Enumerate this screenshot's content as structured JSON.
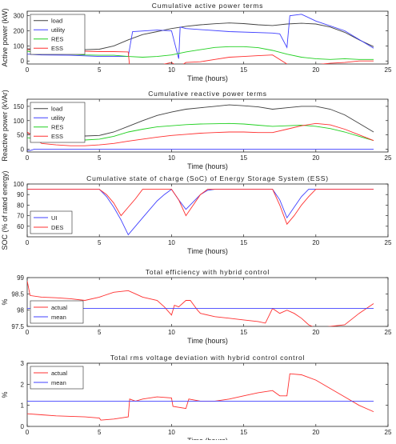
{
  "chart_data": [
    {
      "type": "line",
      "title": "Cumulative active power terms",
      "xlabel": "Time (hours)",
      "ylabel": "Active power (kW)",
      "xlim": [
        0,
        25
      ],
      "ylim": [
        -20,
        330
      ],
      "xticks": [
        0,
        5,
        10,
        15,
        20,
        25
      ],
      "yticks": [
        0,
        100,
        200,
        300
      ],
      "grid": false,
      "legend": "top-left",
      "series": [
        {
          "name": "load",
          "color": "#404040",
          "x": [
            0,
            1,
            2,
            3,
            4,
            5,
            6,
            7,
            8,
            9,
            10,
            11,
            12,
            13,
            14,
            15,
            16,
            17,
            18,
            19,
            20,
            21,
            22,
            23,
            24
          ],
          "y": [
            80,
            78,
            76,
            75,
            75,
            78,
            100,
            140,
            175,
            195,
            215,
            230,
            240,
            247,
            252,
            248,
            240,
            235,
            245,
            250,
            245,
            225,
            190,
            140,
            95
          ]
        },
        {
          "name": "utility",
          "color": "#4040ff",
          "x": [
            0,
            1,
            3,
            5,
            7,
            7.3,
            9,
            10,
            10.5,
            10.6,
            11,
            14,
            17,
            17.5,
            18,
            18.2,
            19,
            20,
            22,
            24
          ],
          "y": [
            45,
            40,
            38,
            30,
            30,
            195,
            205,
            200,
            15,
            225,
            215,
            195,
            185,
            180,
            90,
            300,
            310,
            265,
            200,
            85
          ]
        },
        {
          "name": "RES",
          "color": "#20d020",
          "x": [
            0,
            1,
            2,
            3,
            4,
            5,
            6,
            7,
            8,
            9,
            10,
            11,
            12,
            13,
            14,
            15,
            16,
            17,
            18,
            19,
            20,
            21,
            22,
            23,
            24
          ],
          "y": [
            65,
            52,
            48,
            45,
            40,
            38,
            38,
            30,
            25,
            30,
            40,
            60,
            75,
            90,
            95,
            95,
            88,
            70,
            45,
            25,
            15,
            10,
            15,
            10,
            10
          ]
        },
        {
          "name": "ESS",
          "color": "#ff3030",
          "x": [
            0,
            1,
            2,
            3,
            4,
            5,
            6,
            7,
            7.1,
            8,
            9,
            9.5,
            10,
            10.5,
            11,
            12,
            13,
            14,
            15,
            16,
            17,
            18,
            18.3,
            19,
            20,
            21,
            22,
            23,
            24
          ],
          "y": [
            75,
            72,
            70,
            68,
            65,
            62,
            62,
            60,
            -40,
            -40,
            -35,
            -20,
            -10,
            -40,
            -10,
            -5,
            10,
            25,
            30,
            35,
            40,
            -20,
            -40,
            -35,
            -25,
            -15,
            -10,
            0,
            0
          ]
        }
      ]
    },
    {
      "type": "line",
      "title": "Cumulative reactive power terms",
      "xlabel": "Time (hours)",
      "ylabel": "Reactive power (kVAr)",
      "xlim": [
        0,
        25
      ],
      "ylim": [
        -10,
        175
      ],
      "xticks": [
        0,
        5,
        10,
        15,
        20,
        25
      ],
      "yticks": [
        0,
        50,
        100,
        150
      ],
      "grid": false,
      "legend": "top-left",
      "series": [
        {
          "name": "load",
          "color": "#404040",
          "x": [
            0,
            1,
            2,
            3,
            4,
            5,
            6,
            7,
            8,
            9,
            10,
            11,
            12,
            13,
            14,
            15,
            16,
            17,
            18,
            19,
            20,
            21,
            22,
            23,
            24
          ],
          "y": [
            55,
            52,
            50,
            48,
            46,
            48,
            60,
            80,
            100,
            118,
            130,
            140,
            145,
            150,
            155,
            152,
            148,
            140,
            145,
            150,
            150,
            140,
            120,
            90,
            60
          ]
        },
        {
          "name": "utility",
          "color": "#4040ff",
          "x": [
            0,
            0.2,
            0.5,
            24
          ],
          "y": [
            -5,
            -5,
            0,
            0
          ]
        },
        {
          "name": "RES",
          "color": "#20d020",
          "x": [
            0,
            1,
            2,
            3,
            4,
            5,
            6,
            7,
            8,
            9,
            10,
            11,
            12,
            13,
            14,
            15,
            16,
            17,
            18,
            19,
            20,
            21,
            22,
            23,
            24
          ],
          "y": [
            40,
            36,
            34,
            33,
            32,
            35,
            45,
            60,
            70,
            78,
            82,
            86,
            88,
            89,
            90,
            88,
            84,
            80,
            82,
            84,
            80,
            72,
            60,
            45,
            30
          ]
        },
        {
          "name": "ESS",
          "color": "#ff3030",
          "x": [
            0,
            1,
            2,
            3,
            4,
            5,
            6,
            7,
            8,
            9,
            10,
            11,
            12,
            13,
            14,
            15,
            16,
            17,
            18,
            19,
            20,
            21,
            22,
            23,
            24
          ],
          "y": [
            60,
            20,
            15,
            12,
            12,
            15,
            20,
            28,
            35,
            42,
            48,
            52,
            56,
            58,
            60,
            60,
            58,
            58,
            70,
            82,
            90,
            85,
            70,
            50,
            30
          ]
        }
      ]
    },
    {
      "type": "line",
      "title": "Cumulative state of charge (SoC) of Energy Storage System (ESS)",
      "xlabel": "Time (hours)",
      "ylabel": "SOC (% of rated energy)",
      "xlim": [
        0,
        25
      ],
      "ylim": [
        50,
        100
      ],
      "xticks": [
        0,
        5,
        10,
        15,
        20,
        25
      ],
      "yticks": [
        60,
        70,
        80,
        90,
        100
      ],
      "grid": false,
      "legend": "bottom-left",
      "series": [
        {
          "name": "UI",
          "color": "#4040ff",
          "x": [
            0,
            5,
            5.5,
            6,
            6.5,
            7,
            7.5,
            8,
            8.5,
            9,
            9.5,
            10,
            10.5,
            11,
            11.5,
            12,
            12.5,
            13,
            17,
            17.5,
            18,
            18.5,
            19,
            19.5,
            24
          ],
          "y": [
            95,
            95,
            88,
            78,
            66,
            52,
            60,
            68,
            76,
            84,
            90,
            95,
            85,
            76,
            83,
            90,
            94,
            95,
            95,
            85,
            68,
            78,
            88,
            95,
            95
          ]
        },
        {
          "name": "DES",
          "color": "#ff3030",
          "x": [
            0,
            5,
            5.5,
            6,
            6.5,
            7,
            7.5,
            8,
            8.5,
            9,
            9.5,
            10,
            10.5,
            11,
            11.5,
            12,
            12.5,
            13,
            17,
            17.5,
            18,
            18.5,
            19,
            19.5,
            20,
            24
          ],
          "y": [
            95,
            95,
            90,
            82,
            70,
            78,
            86,
            95,
            95,
            95,
            95,
            95,
            85,
            70,
            80,
            90,
            95,
            95,
            95,
            80,
            62,
            70,
            80,
            88,
            95,
            95
          ]
        }
      ]
    },
    {
      "type": "line",
      "title": "Total efficiency with hybrid control",
      "xlabel": "Time (hours)",
      "ylabel": "%",
      "xlim": [
        0,
        25
      ],
      "ylim": [
        97.5,
        99
      ],
      "xticks": [
        0,
        5,
        10,
        15,
        20,
        25
      ],
      "yticks": [
        97.5,
        98,
        98.5,
        99
      ],
      "grid": false,
      "legend": "bottom-left",
      "series": [
        {
          "name": "actual",
          "color": "#ff3030",
          "x": [
            0,
            0.2,
            1,
            2,
            3,
            4,
            5,
            6,
            7,
            7.5,
            8,
            9,
            9.5,
            10,
            10.2,
            10.5,
            11,
            11.3,
            11.8,
            12,
            13,
            14,
            15,
            16,
            16.5,
            17,
            17.5,
            18,
            18.5,
            19,
            19.5,
            20,
            21,
            22,
            23,
            24
          ],
          "y": [
            98.9,
            98.45,
            98.4,
            98.38,
            98.35,
            98.3,
            98.4,
            98.55,
            98.6,
            98.5,
            98.4,
            98.3,
            98.1,
            97.85,
            98.15,
            98.1,
            98.3,
            98.3,
            98,
            97.9,
            97.8,
            97.75,
            97.7,
            97.65,
            97.6,
            98.05,
            97.9,
            98,
            97.9,
            97.75,
            97.55,
            97.45,
            97.5,
            97.55,
            97.9,
            98.2
          ]
        },
        {
          "name": "mean",
          "color": "#4040ff",
          "x": [
            0,
            24
          ],
          "y": [
            98.05,
            98.05
          ]
        }
      ]
    },
    {
      "type": "line",
      "title": "Total rms voltage deviation with hybrid control control",
      "xlabel": "Time (hours)",
      "ylabel": "%",
      "xlim": [
        0,
        25
      ],
      "ylim": [
        0,
        3
      ],
      "xticks": [
        0,
        5,
        10,
        15,
        20,
        25
      ],
      "yticks": [
        0,
        1,
        2,
        3
      ],
      "grid": false,
      "legend": "top-left",
      "series": [
        {
          "name": "actual",
          "color": "#ff3030",
          "x": [
            0,
            1,
            2,
            3,
            4,
            5,
            5.1,
            6,
            7,
            7.1,
            7.5,
            8,
            9,
            10,
            10.1,
            11,
            11.2,
            12,
            13,
            14,
            15,
            16,
            17,
            17.5,
            18,
            18.2,
            19,
            20,
            21,
            22,
            23,
            24
          ],
          "y": [
            0.6,
            0.55,
            0.5,
            0.48,
            0.45,
            0.4,
            0.3,
            0.35,
            0.45,
            1.3,
            1.2,
            1.3,
            1.4,
            1.35,
            0.95,
            0.85,
            1.3,
            1.2,
            1.2,
            1.3,
            1.45,
            1.6,
            1.7,
            1.45,
            1.45,
            2.5,
            2.45,
            2.2,
            1.8,
            1.4,
            1.0,
            0.7
          ]
        },
        {
          "name": "mean",
          "color": "#4040ff",
          "x": [
            0,
            24
          ],
          "y": [
            1.2,
            1.2
          ]
        }
      ]
    }
  ]
}
